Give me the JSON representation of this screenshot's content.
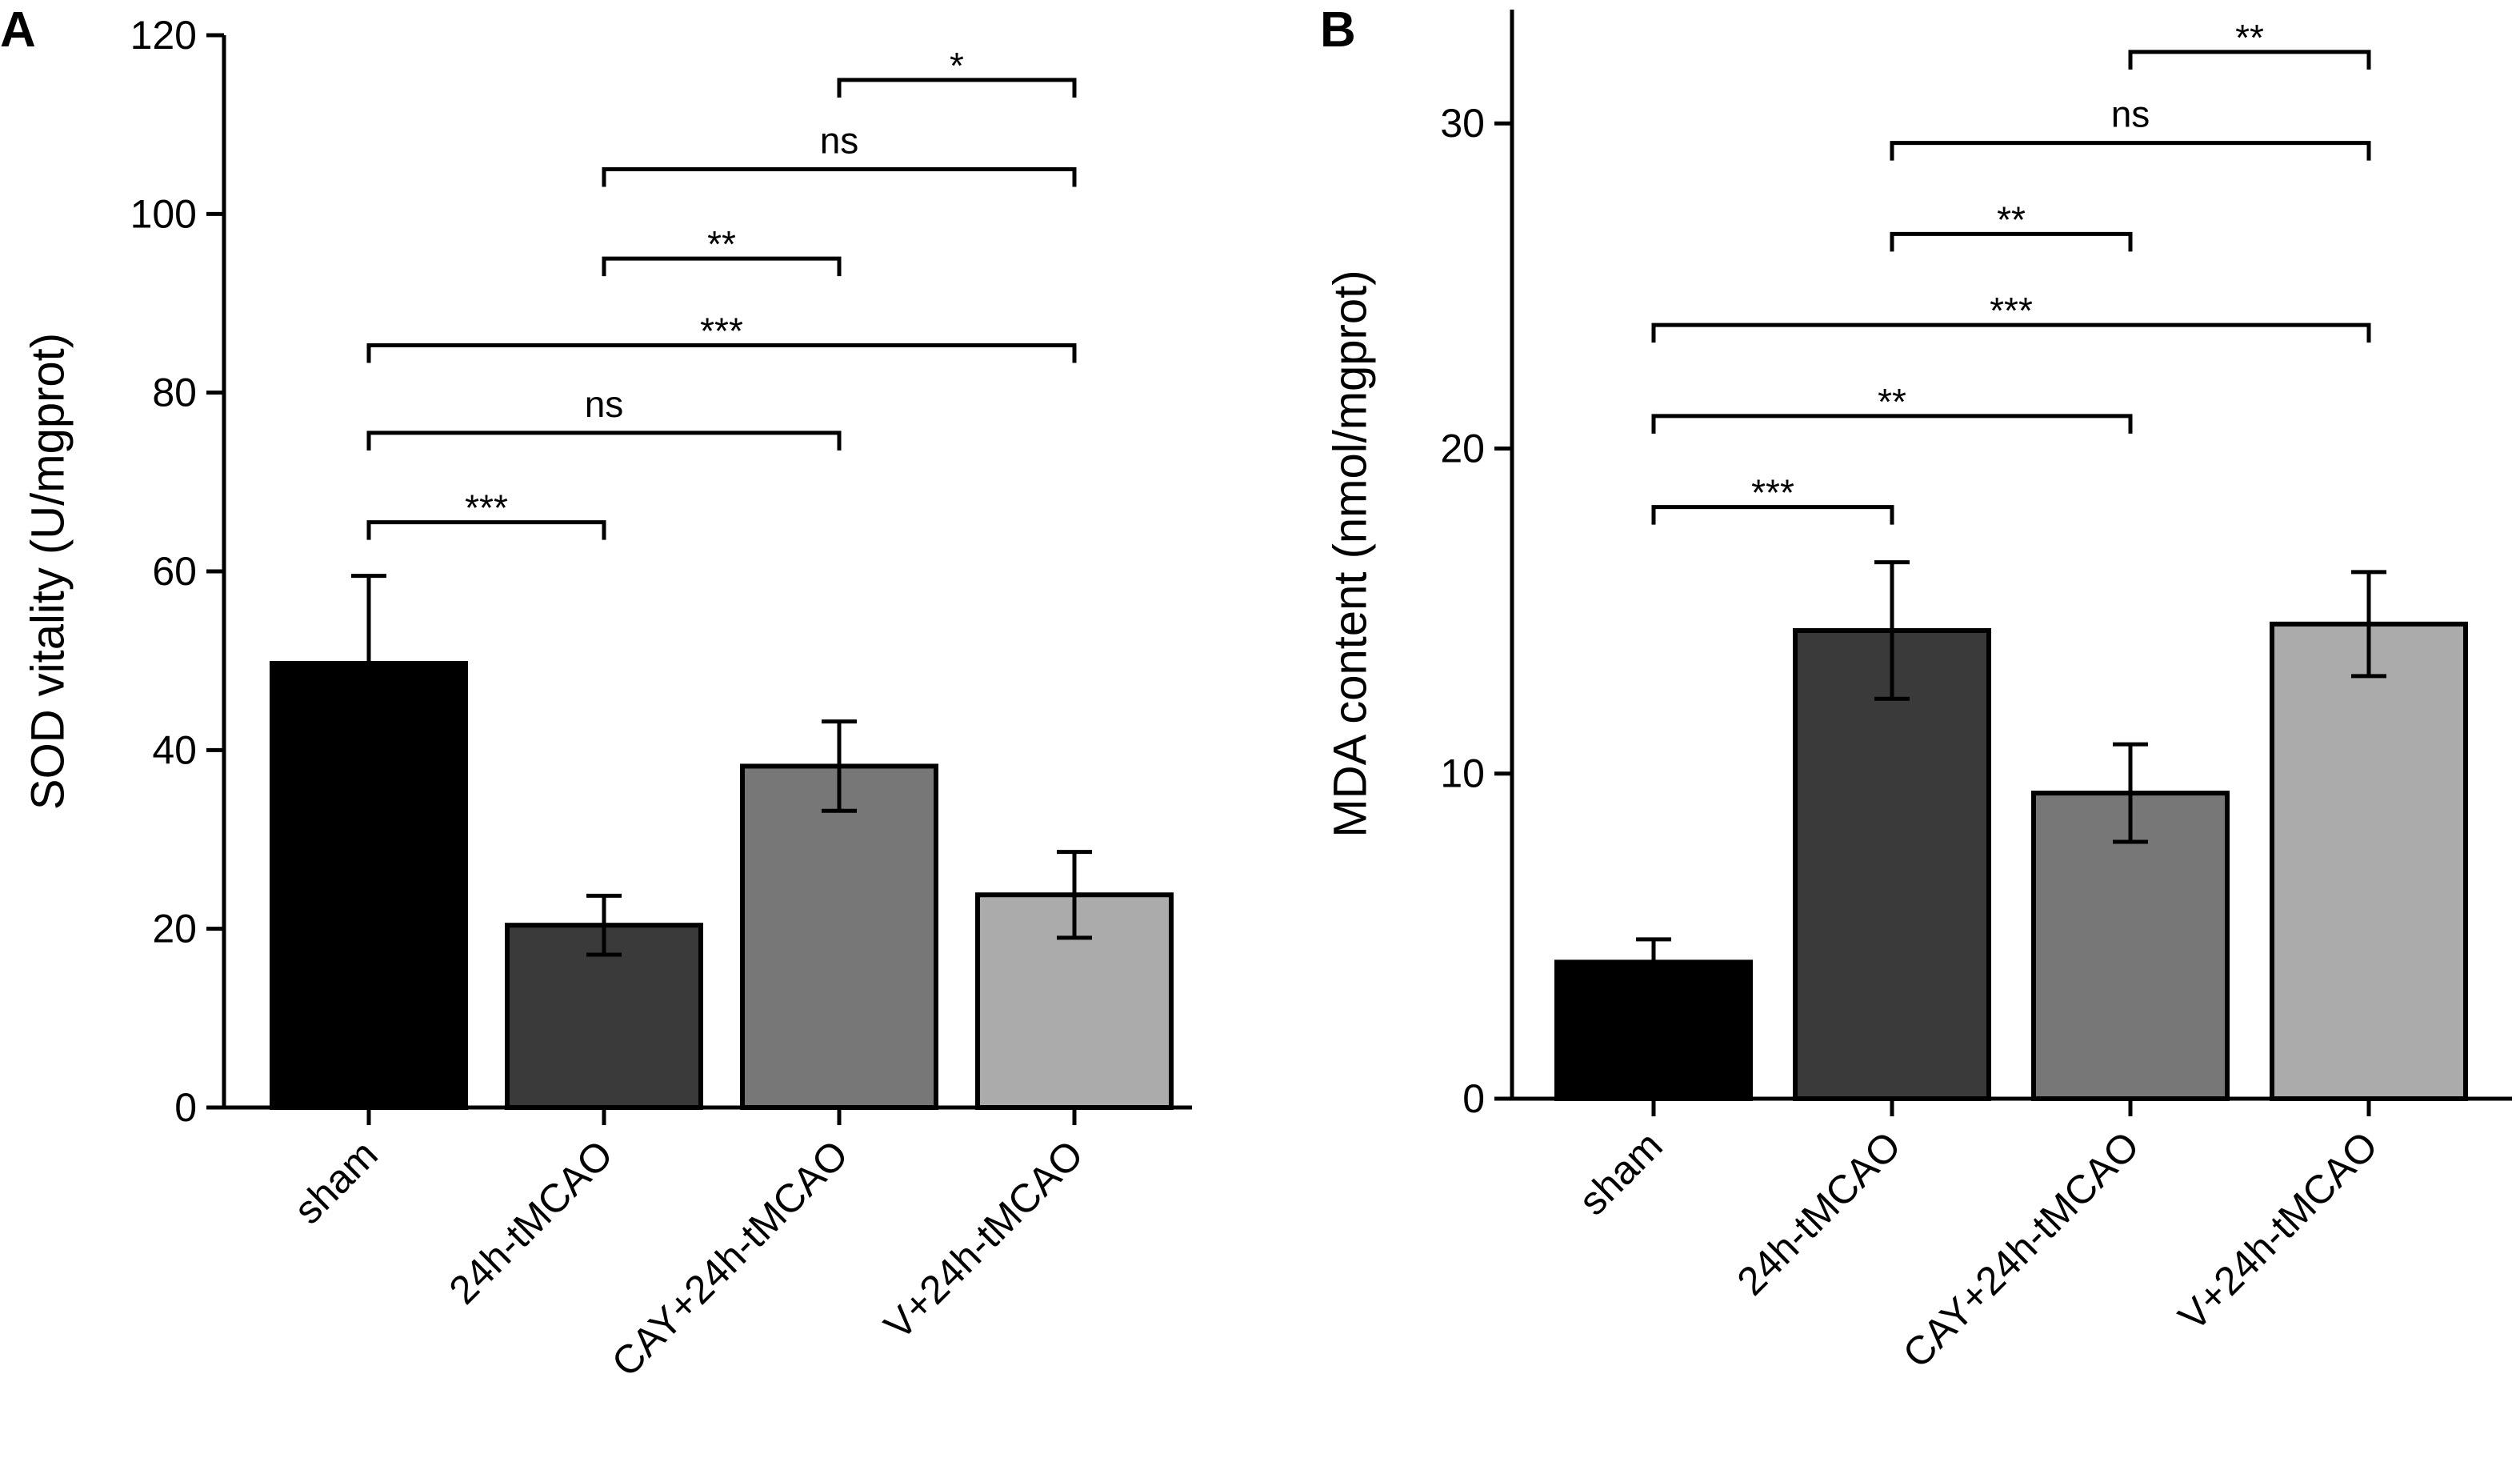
{
  "chart_data": [
    {
      "panel": "A",
      "type": "bar",
      "categories": [
        "sham",
        "24h-tMCAO",
        "CAY+24h-tMCAO",
        "V+24h-tMCAO"
      ],
      "values": [
        49.7,
        20.4,
        38.2,
        23.8
      ],
      "errors": [
        9.8,
        3.3,
        5.0,
        4.8
      ],
      "colors": [
        "#000000",
        "#3a3a3a",
        "#777777",
        "#ababab"
      ],
      "xlabel": "",
      "ylabel": "SOD vitality (U/mgprot)",
      "ylim": [
        0,
        120
      ],
      "yticks": [
        0,
        20,
        40,
        60,
        80,
        100,
        120
      ],
      "significance": [
        {
          "from": 0,
          "to": 1,
          "y": 65.5,
          "label": "***"
        },
        {
          "from": 0,
          "to": 2,
          "y": 75.5,
          "label": "ns"
        },
        {
          "from": 0,
          "to": 3,
          "y": 85.3,
          "label": "***"
        },
        {
          "from": 1,
          "to": 2,
          "y": 95.0,
          "label": "**"
        },
        {
          "from": 1,
          "to": 3,
          "y": 105.0,
          "label": "ns"
        },
        {
          "from": 2,
          "to": 3,
          "y": 115.0,
          "label": "*"
        }
      ]
    },
    {
      "panel": "B",
      "type": "bar",
      "categories": [
        "sham",
        "24h-tMCAO",
        "CAY+24h-tMCAO",
        "V+24h-tMCAO"
      ],
      "values": [
        4.2,
        14.4,
        9.4,
        14.6
      ],
      "errors": [
        0.7,
        2.1,
        1.5,
        1.6
      ],
      "colors": [
        "#000000",
        "#3a3a3a",
        "#777777",
        "#ababab"
      ],
      "xlabel": "",
      "ylabel": "MDA content (nmol/mgprot)",
      "ylim": [
        0,
        33.5
      ],
      "yticks": [
        0,
        10,
        20,
        30
      ],
      "significance": [
        {
          "from": 0,
          "to": 1,
          "y": 18.2,
          "label": "***"
        },
        {
          "from": 0,
          "to": 2,
          "y": 21.0,
          "label": "**"
        },
        {
          "from": 0,
          "to": 3,
          "y": 23.8,
          "label": "***"
        },
        {
          "from": 1,
          "to": 2,
          "y": 26.6,
          "label": "**"
        },
        {
          "from": 1,
          "to": 3,
          "y": 29.4,
          "label": "ns"
        },
        {
          "from": 2,
          "to": 3,
          "y": 32.2,
          "label": "**"
        }
      ]
    }
  ]
}
